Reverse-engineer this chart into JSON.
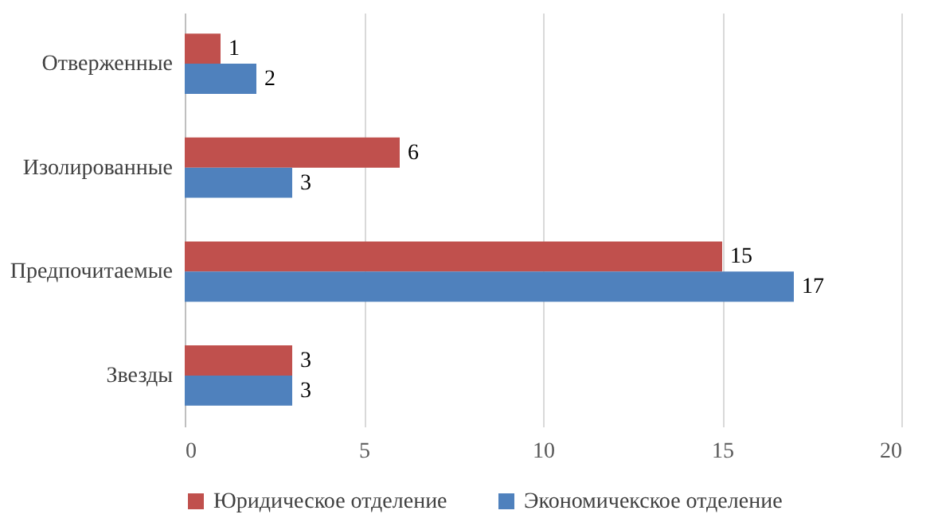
{
  "chart_data": {
    "type": "bar",
    "orientation": "horizontal",
    "categories": [
      "Отверженные",
      "Изолированные",
      "Предпочитаемые",
      "Звезды"
    ],
    "series": [
      {
        "name": "Юридическое отделение",
        "color": "#c0504d",
        "values": [
          1,
          6,
          15,
          3
        ]
      },
      {
        "name": "Экономичекское отделение",
        "color": "#4f81bd",
        "values": [
          2,
          3,
          17,
          3
        ]
      }
    ],
    "xlim": [
      0,
      20
    ],
    "xticks": [
      0,
      5,
      10,
      15,
      20
    ],
    "grid": "x",
    "legend": "bottom",
    "data_labels": true
  }
}
